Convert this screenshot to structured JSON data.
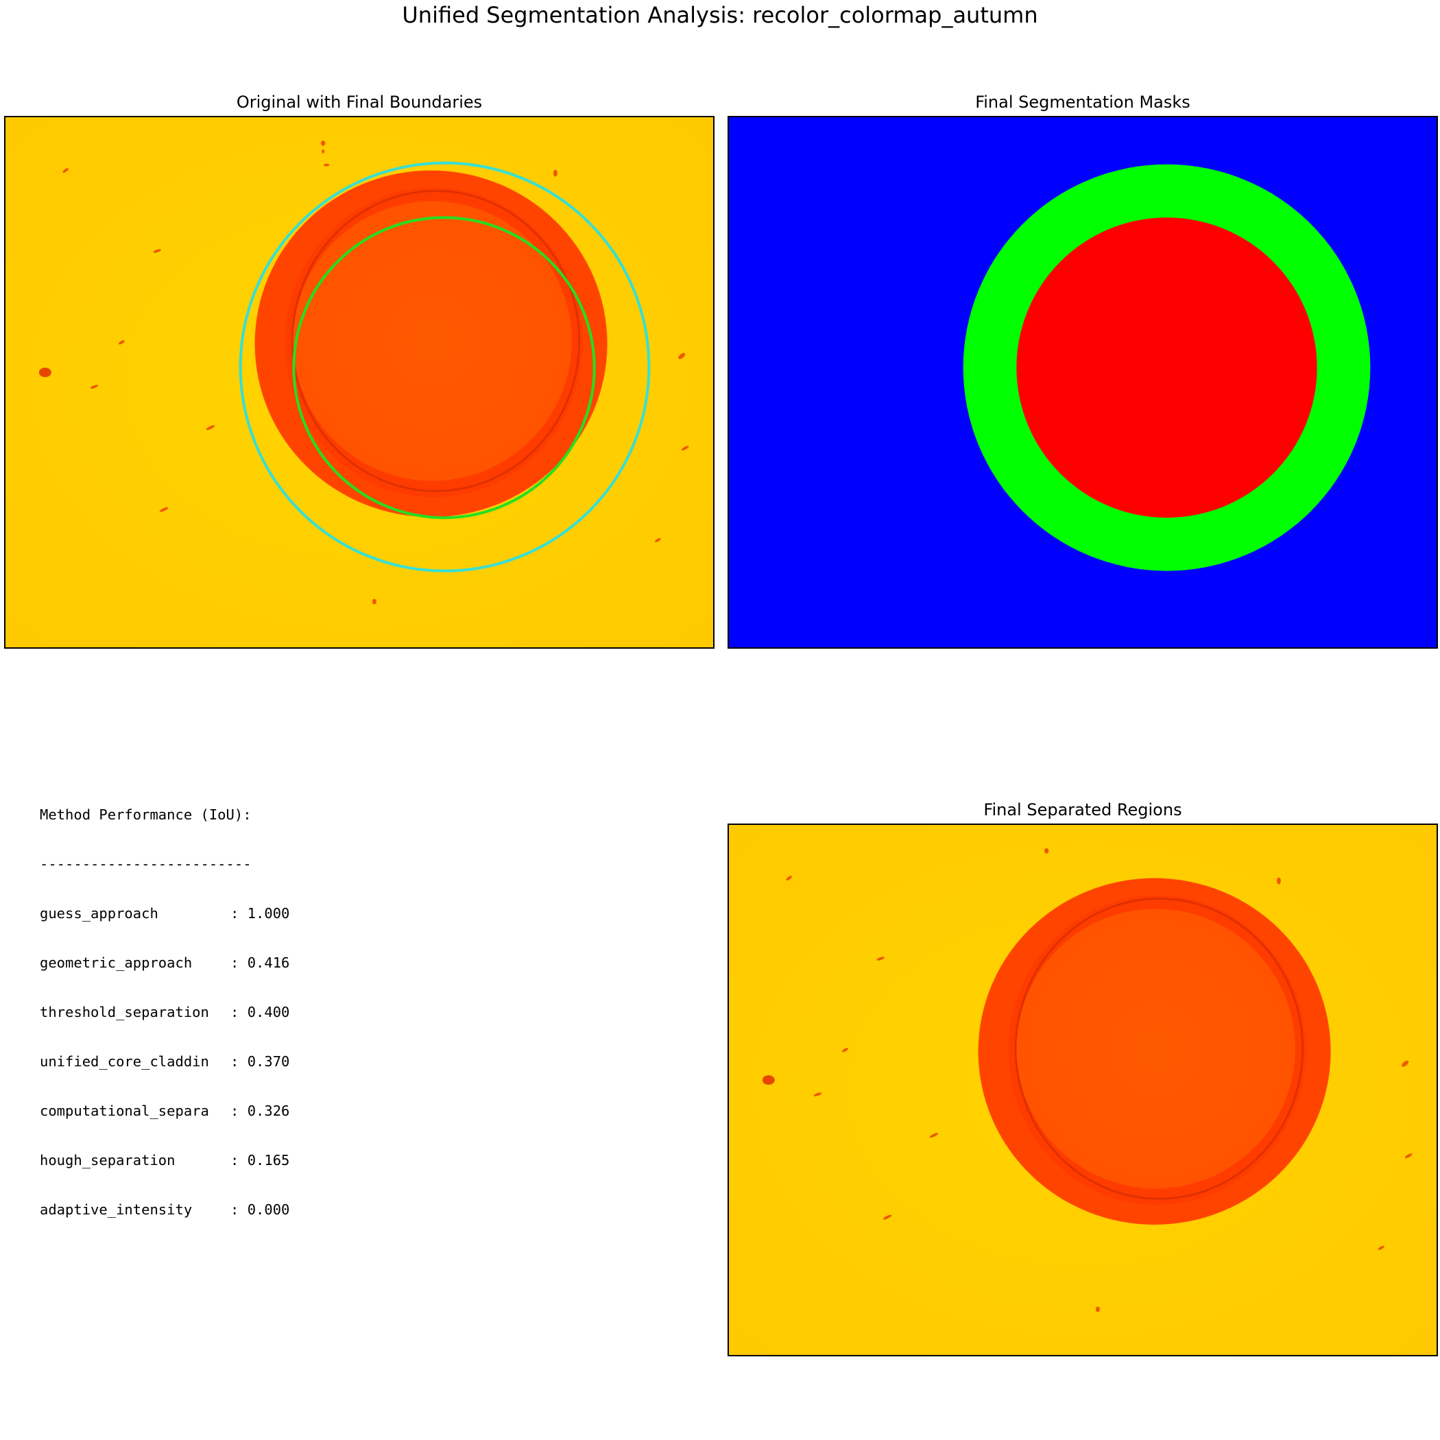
{
  "figure": {
    "title": "Unified Segmentation Analysis: recolor_colormap_autumn"
  },
  "panels": {
    "original": {
      "title": "Original with Final Boundaries"
    },
    "masks": {
      "title": "Final Segmentation Masks"
    },
    "separated": {
      "title": "Final Separated Regions"
    }
  },
  "colors": {
    "background_yellow": "#ffd000",
    "cladding_orange_red": "#ff3c00",
    "core_orange": "#ff5a00",
    "outer_boundary": "#33e0d8",
    "inner_boundary": "#22e022",
    "mask_ferrule": "#0000ff",
    "mask_cladding": "#00ff00",
    "mask_core": "#ff0000"
  },
  "performance": {
    "heading": "Method Performance (IoU):",
    "separator": "-------------------------",
    "rows": [
      {
        "method": "guess_approach",
        "score": "1.000"
      },
      {
        "method": "geometric_approach",
        "score": "0.416"
      },
      {
        "method": "threshold_separation",
        "score": "0.400"
      },
      {
        "method": "unified_core_claddin",
        "score": "0.370"
      },
      {
        "method": "computational_separa",
        "score": "0.326"
      },
      {
        "method": "hough_separation",
        "score": "0.165"
      },
      {
        "method": "adaptive_intensity",
        "score": "0.000"
      }
    ]
  }
}
